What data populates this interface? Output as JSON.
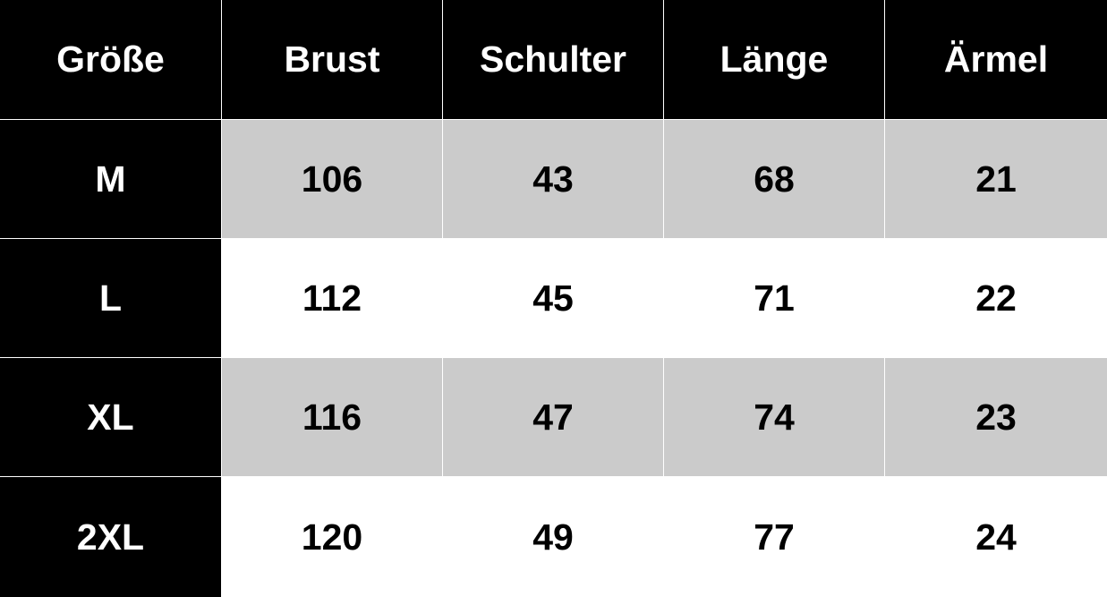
{
  "table": {
    "headers": [
      "Größe",
      "Brust",
      "Schulter",
      "Länge",
      "Ärmel"
    ],
    "rows": [
      [
        "M",
        "106",
        "43",
        "68",
        "21"
      ],
      [
        "L",
        "112",
        "45",
        "71",
        "22"
      ],
      [
        "XL",
        "116",
        "47",
        "74",
        "23"
      ],
      [
        "2XL",
        "120",
        "49",
        "77",
        "24"
      ]
    ]
  },
  "colors": {
    "header_bg": "#000000",
    "stripe_gray": "#cbcbcb",
    "stripe_white": "#ffffff"
  }
}
